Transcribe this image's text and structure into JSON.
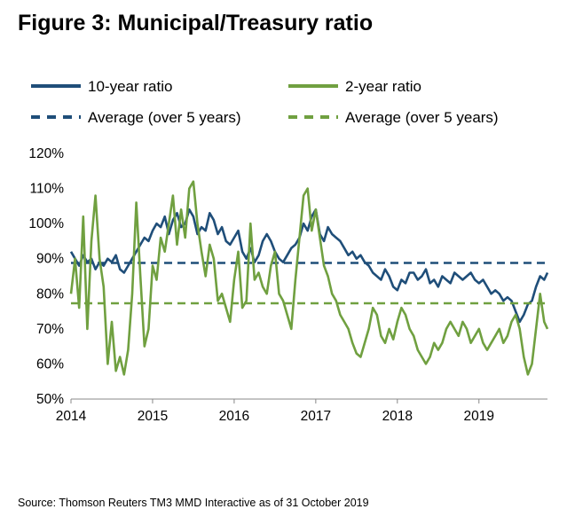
{
  "title": "Figure 3: Municipal/Treasury ratio",
  "source": "Source: Thomson Reuters TM3 MMD Interactive as of 31 October 2019",
  "chart_data": {
    "type": "line",
    "title": "Figure 3: Municipal/Treasury ratio",
    "xlabel": "",
    "ylabel": "",
    "xlim": [
      2014,
      2019.84
    ],
    "ylim": [
      50,
      120
    ],
    "x_ticks": [
      "2014",
      "2015",
      "2016",
      "2017",
      "2018",
      "2019"
    ],
    "y_ticks": [
      "50%",
      "60%",
      "70%",
      "80%",
      "90%",
      "100%",
      "110%",
      "120%"
    ],
    "y_tick_values": [
      50,
      60,
      70,
      80,
      90,
      100,
      110,
      120
    ],
    "grid": false,
    "legend_position": "top",
    "series": [
      {
        "name": "10-year ratio",
        "color": "#1f4e79",
        "style": "solid",
        "x": [
          2014.0,
          2014.05,
          2014.1,
          2014.15,
          2014.2,
          2014.25,
          2014.3,
          2014.35,
          2014.4,
          2014.45,
          2014.5,
          2014.55,
          2014.6,
          2014.65,
          2014.7,
          2014.75,
          2014.8,
          2014.85,
          2014.9,
          2014.95,
          2015.0,
          2015.05,
          2015.1,
          2015.15,
          2015.2,
          2015.25,
          2015.3,
          2015.35,
          2015.4,
          2015.45,
          2015.5,
          2015.55,
          2015.6,
          2015.65,
          2015.7,
          2015.75,
          2015.8,
          2015.85,
          2015.9,
          2015.95,
          2016.0,
          2016.05,
          2016.1,
          2016.15,
          2016.2,
          2016.25,
          2016.3,
          2016.35,
          2016.4,
          2016.45,
          2016.5,
          2016.55,
          2016.6,
          2016.65,
          2016.7,
          2016.75,
          2016.8,
          2016.85,
          2016.9,
          2016.95,
          2017.0,
          2017.05,
          2017.1,
          2017.15,
          2017.2,
          2017.25,
          2017.3,
          2017.35,
          2017.4,
          2017.45,
          2017.5,
          2017.55,
          2017.6,
          2017.65,
          2017.7,
          2017.75,
          2017.8,
          2017.85,
          2017.9,
          2017.95,
          2018.0,
          2018.05,
          2018.1,
          2018.15,
          2018.2,
          2018.25,
          2018.3,
          2018.35,
          2018.4,
          2018.45,
          2018.5,
          2018.55,
          2018.6,
          2018.65,
          2018.7,
          2018.75,
          2018.8,
          2018.85,
          2018.9,
          2018.95,
          2019.0,
          2019.05,
          2019.1,
          2019.15,
          2019.2,
          2019.25,
          2019.3,
          2019.35,
          2019.4,
          2019.45,
          2019.5,
          2019.55,
          2019.6,
          2019.65,
          2019.7,
          2019.75,
          2019.8,
          2019.84
        ],
        "values": [
          92,
          90,
          88,
          91,
          89,
          90,
          87,
          89,
          88,
          90,
          89,
          91,
          87,
          86,
          88,
          90,
          92,
          94,
          96,
          95,
          98,
          100,
          99,
          102,
          97,
          101,
          103,
          99,
          100,
          104,
          102,
          97,
          99,
          98,
          103,
          101,
          97,
          99,
          95,
          94,
          96,
          98,
          92,
          90,
          93,
          89,
          91,
          95,
          97,
          95,
          92,
          90,
          89,
          91,
          93,
          94,
          96,
          100,
          98,
          102,
          104,
          97,
          95,
          99,
          97,
          96,
          95,
          93,
          91,
          92,
          90,
          91,
          89,
          88,
          86,
          85,
          84,
          87,
          85,
          82,
          81,
          84,
          83,
          86,
          86,
          84,
          85,
          87,
          83,
          84,
          82,
          85,
          84,
          83,
          86,
          85,
          84,
          85,
          86,
          84,
          83,
          84,
          82,
          80,
          81,
          80,
          78,
          79,
          78,
          75,
          72,
          74,
          77,
          78,
          82,
          85,
          84,
          86
        ]
      },
      {
        "name": "2-year ratio",
        "color": "#70a040",
        "style": "solid",
        "x": [
          2014.0,
          2014.05,
          2014.1,
          2014.15,
          2014.2,
          2014.25,
          2014.3,
          2014.35,
          2014.4,
          2014.45,
          2014.5,
          2014.55,
          2014.6,
          2014.65,
          2014.7,
          2014.75,
          2014.8,
          2014.85,
          2014.9,
          2014.95,
          2015.0,
          2015.05,
          2015.1,
          2015.15,
          2015.2,
          2015.25,
          2015.3,
          2015.35,
          2015.4,
          2015.45,
          2015.5,
          2015.55,
          2015.6,
          2015.65,
          2015.7,
          2015.75,
          2015.8,
          2015.85,
          2015.9,
          2015.95,
          2016.0,
          2016.05,
          2016.1,
          2016.15,
          2016.2,
          2016.25,
          2016.3,
          2016.35,
          2016.4,
          2016.45,
          2016.5,
          2016.55,
          2016.6,
          2016.65,
          2016.7,
          2016.75,
          2016.8,
          2016.85,
          2016.9,
          2016.95,
          2017.0,
          2017.05,
          2017.1,
          2017.15,
          2017.2,
          2017.25,
          2017.3,
          2017.35,
          2017.4,
          2017.45,
          2017.5,
          2017.55,
          2017.6,
          2017.65,
          2017.7,
          2017.75,
          2017.8,
          2017.85,
          2017.9,
          2017.95,
          2018.0,
          2018.05,
          2018.1,
          2018.15,
          2018.2,
          2018.25,
          2018.3,
          2018.35,
          2018.4,
          2018.45,
          2018.5,
          2018.55,
          2018.6,
          2018.65,
          2018.7,
          2018.75,
          2018.8,
          2018.85,
          2018.9,
          2018.95,
          2019.0,
          2019.05,
          2019.1,
          2019.15,
          2019.2,
          2019.25,
          2019.3,
          2019.35,
          2019.4,
          2019.45,
          2019.5,
          2019.55,
          2019.6,
          2019.65,
          2019.7,
          2019.75,
          2019.8,
          2019.84
        ],
        "values": [
          80,
          90,
          76,
          102,
          70,
          95,
          108,
          90,
          82,
          60,
          72,
          58,
          62,
          57,
          64,
          80,
          106,
          85,
          65,
          70,
          88,
          84,
          96,
          92,
          100,
          108,
          94,
          104,
          96,
          110,
          112,
          100,
          92,
          85,
          94,
          90,
          78,
          80,
          76,
          72,
          84,
          92,
          76,
          78,
          100,
          84,
          86,
          82,
          80,
          88,
          92,
          80,
          78,
          74,
          70,
          84,
          96,
          108,
          110,
          98,
          104,
          96,
          88,
          85,
          80,
          78,
          74,
          72,
          70,
          66,
          63,
          62,
          66,
          70,
          76,
          74,
          68,
          66,
          70,
          67,
          72,
          76,
          74,
          70,
          68,
          64,
          62,
          60,
          62,
          66,
          64,
          66,
          70,
          72,
          70,
          68,
          72,
          70,
          66,
          68,
          70,
          66,
          64,
          66,
          68,
          70,
          66,
          68,
          72,
          74,
          70,
          62,
          57,
          60,
          70,
          80,
          72,
          70
        ]
      },
      {
        "name": "Average (over 5 years)",
        "color": "#1f4e79",
        "style": "dashed",
        "x": [
          2014.0,
          2019.84
        ],
        "values": [
          88.8,
          88.8
        ]
      },
      {
        "name": "Average (over 5 years)",
        "color": "#70a040",
        "style": "dashed",
        "x": [
          2014.0,
          2019.84
        ],
        "values": [
          77.3,
          77.3
        ]
      }
    ]
  }
}
